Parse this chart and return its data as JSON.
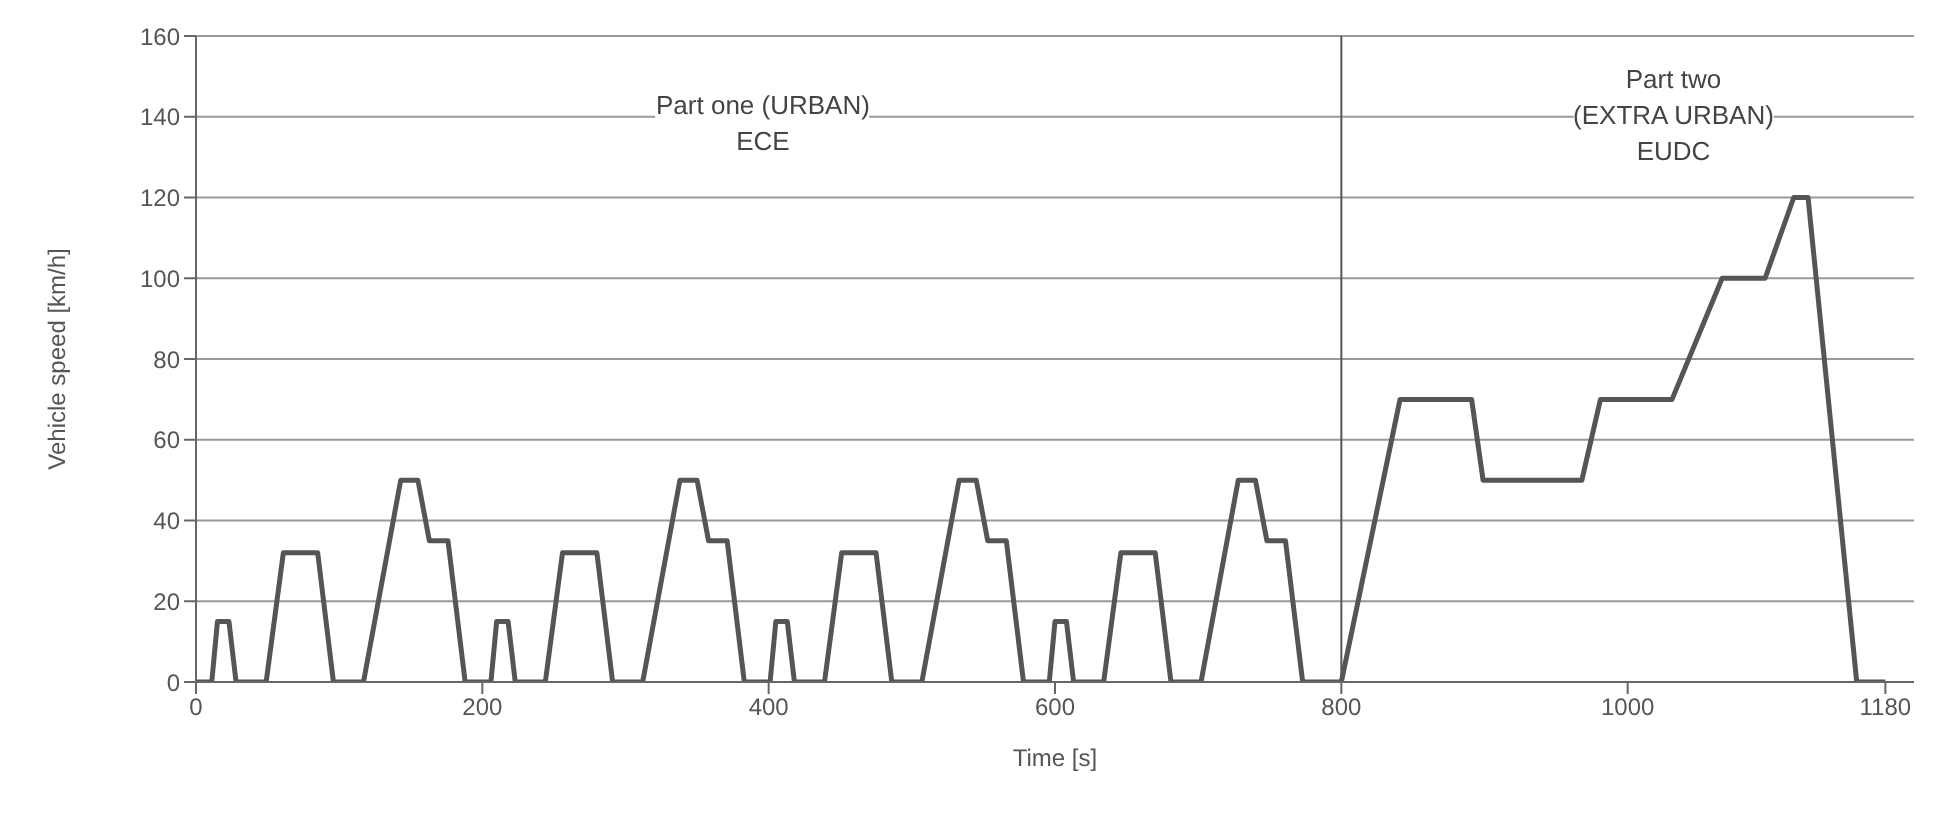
{
  "chart_data": {
    "type": "line",
    "xlabel": "Time [s]",
    "ylabel": "Vehicle speed [km/h]",
    "x": [
      0,
      11,
      15,
      23,
      28,
      49,
      61,
      85,
      96,
      117,
      143,
      155,
      163,
      176,
      188,
      195,
      206,
      210,
      218,
      223,
      244,
      256,
      280,
      291,
      312,
      338,
      350,
      358,
      371,
      383,
      390,
      401,
      405,
      413,
      418,
      439,
      451,
      475,
      486,
      507,
      533,
      545,
      553,
      566,
      578,
      585,
      596,
      600,
      608,
      613,
      634,
      646,
      670,
      681,
      702,
      728,
      740,
      748,
      761,
      773,
      780,
      800,
      841,
      891,
      899,
      968,
      981,
      1031,
      1066,
      1096,
      1116,
      1126,
      1160,
      1180
    ],
    "series": [
      {
        "color": "#555555",
        "values": [
          0,
          0,
          15,
          15,
          0,
          0,
          32,
          32,
          0,
          0,
          50,
          50,
          35,
          35,
          0,
          0,
          0,
          15,
          15,
          0,
          0,
          32,
          32,
          0,
          0,
          50,
          50,
          35,
          35,
          0,
          0,
          0,
          15,
          15,
          0,
          0,
          32,
          32,
          0,
          0,
          50,
          50,
          35,
          35,
          0,
          0,
          0,
          15,
          15,
          0,
          0,
          32,
          32,
          0,
          0,
          50,
          50,
          35,
          35,
          0,
          0,
          0,
          70,
          70,
          50,
          50,
          70,
          70,
          100,
          100,
          120,
          120,
          0,
          0
        ]
      }
    ],
    "xlim": [
      0,
      1200
    ],
    "xticks": [
      0,
      200,
      400,
      600,
      800,
      1000,
      1180
    ],
    "ylim": [
      0,
      160
    ],
    "yticks": [
      0,
      20,
      40,
      60,
      80,
      100,
      120,
      140,
      160
    ],
    "grid": "y",
    "marker": "none",
    "line_style": "solid",
    "ref_lines": [
      {
        "axis": "x",
        "value": 800,
        "color": "#555555"
      }
    ],
    "annotations": [
      "Part one (URBAN)\nECE",
      "Part two\n(EXTRA URBAN)\nEUDC"
    ]
  }
}
